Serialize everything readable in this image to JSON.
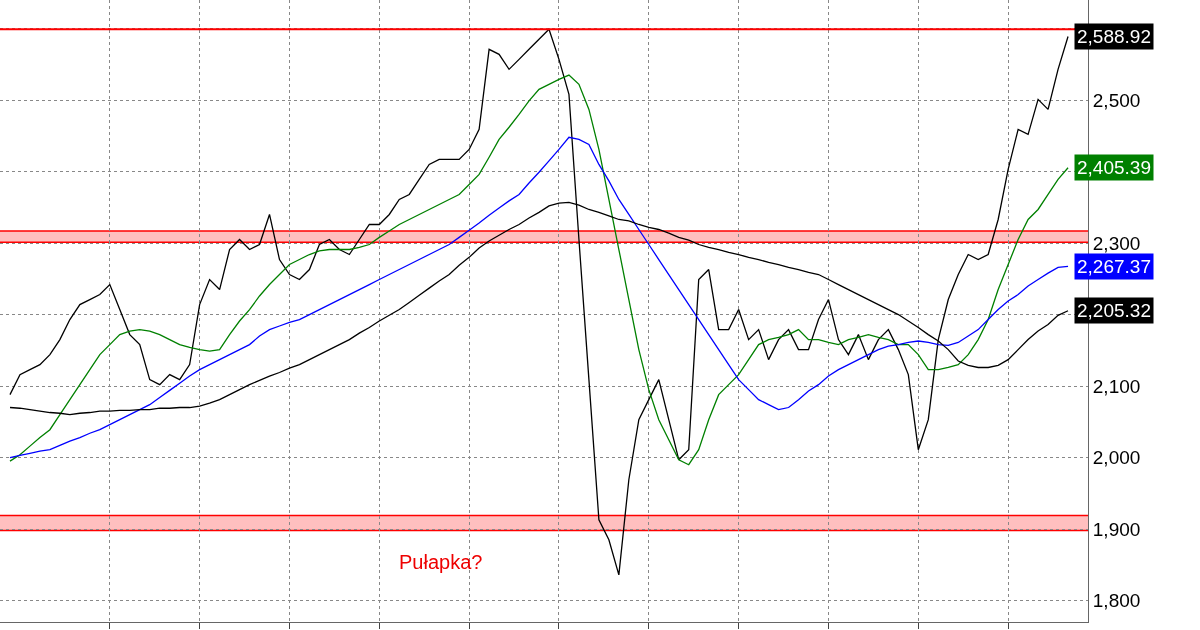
{
  "chart_data": {
    "type": "line",
    "categories": [
      null,
      null,
      null,
      null,
      null,
      null,
      null,
      null,
      null,
      null,
      null,
      null,
      null,
      null,
      null,
      null,
      null,
      null,
      null,
      null,
      null,
      null,
      null,
      null,
      null,
      null,
      null,
      null,
      null,
      null,
      null,
      null,
      null,
      null,
      null,
      null,
      null,
      null,
      null,
      null,
      null,
      null,
      null,
      null,
      null,
      null,
      null,
      null,
      null,
      null,
      null,
      null,
      null,
      null,
      null,
      null,
      null,
      null,
      null,
      null,
      null,
      null,
      null,
      null,
      null,
      null,
      null,
      null,
      null,
      null,
      null,
      null,
      null,
      null,
      null,
      null,
      null,
      null,
      null,
      null,
      null,
      null,
      null,
      null,
      null,
      null,
      null,
      null,
      null,
      null,
      null,
      null,
      null,
      null,
      null,
      null,
      null,
      null,
      null,
      null,
      null,
      null,
      null,
      null,
      null,
      null,
      null
    ],
    "series": [
      {
        "color": "#000000",
        "values": [
          2088,
          2116,
          2123,
          2130,
          2144,
          2165,
          2193,
          2214,
          2221,
          2228,
          2242,
          2207,
          2172,
          2158,
          2109,
          2102,
          2116,
          2109,
          2130,
          2214,
          2249,
          2235,
          2291,
          2305,
          2291,
          2298,
          2340,
          2277,
          2256,
          2249,
          2263,
          2298,
          2305,
          2291,
          2284,
          2305,
          2326,
          2326,
          2340,
          2361,
          2368,
          2389,
          2410,
          2417,
          2417,
          2417,
          2431,
          2459,
          2571,
          2564,
          2543,
          2557,
          2571,
          2585,
          2599,
          2557,
          2508,
          2305,
          2109,
          1913,
          1885,
          1836,
          1969,
          2053,
          2081,
          2109,
          2053,
          1997,
          2011,
          2249,
          2263,
          2179,
          2179,
          2207,
          2165,
          2179,
          2137,
          2165,
          2179,
          2151,
          2151,
          2193,
          2221,
          2165,
          2144,
          2172,
          2137,
          2165,
          2179,
          2151,
          2116,
          2011,
          2053,
          2165,
          2221,
          2256,
          2284,
          2277,
          2284,
          2333,
          2403,
          2459,
          2452,
          2501,
          2487,
          2543,
          2588.92
        ],
        "value_labels": [
          null,
          null,
          null,
          null,
          null,
          null,
          null,
          null,
          null,
          null,
          null,
          null,
          null,
          null,
          null,
          null,
          null,
          null,
          null,
          null,
          null,
          null,
          null,
          null,
          null,
          null,
          null,
          null,
          null,
          null,
          null,
          null,
          null,
          null,
          null,
          null,
          null,
          null,
          null,
          null,
          null,
          null,
          null,
          null,
          null,
          null,
          null,
          null,
          null,
          null,
          null,
          null,
          null,
          null,
          null,
          null,
          null,
          null,
          null,
          null,
          null,
          null,
          null,
          null,
          null,
          null,
          null,
          null,
          null,
          null,
          null,
          null,
          null,
          null,
          null,
          null,
          null,
          null,
          null,
          null,
          null,
          null,
          null,
          null,
          null,
          null,
          null,
          null,
          null,
          null,
          null,
          null,
          null,
          null,
          null,
          null,
          null,
          null,
          null,
          null,
          null,
          null,
          null,
          null,
          null,
          null,
          "2,588.92"
        ]
      },
      {
        "color": "#008000",
        "values": [
          1995,
          2004,
          2016,
          2028,
          2039,
          2060,
          2081,
          2102,
          2123,
          2144,
          2158,
          2172,
          2177,
          2179,
          2177,
          2172,
          2165,
          2158,
          2154,
          2151,
          2149,
          2151,
          2172,
          2191,
          2207,
          2226,
          2242,
          2256,
          2270,
          2277,
          2284,
          2289,
          2291,
          2291,
          2291,
          2294,
          2298,
          2308,
          2317,
          2326,
          2333,
          2340,
          2347,
          2354,
          2361,
          2368,
          2382,
          2396,
          2420,
          2445,
          2462,
          2480,
          2499,
          2515,
          2522,
          2529,
          2535,
          2522,
          2487,
          2431,
          2361,
          2291,
          2221,
          2151,
          2095,
          2053,
          2025,
          1997,
          1990,
          2011,
          2053,
          2088,
          2102,
          2116,
          2137,
          2158,
          2165,
          2168,
          2172,
          2179,
          2165,
          2165,
          2161,
          2158,
          2165,
          2168,
          2172,
          2168,
          2165,
          2158,
          2158,
          2144,
          2123,
          2123,
          2126,
          2130,
          2144,
          2165,
          2193,
          2235,
          2270,
          2305,
          2333,
          2347,
          2368,
          2389,
          2405.39
        ],
        "value_labels": [
          null,
          null,
          null,
          null,
          null,
          null,
          null,
          null,
          null,
          null,
          null,
          null,
          null,
          null,
          null,
          null,
          null,
          null,
          null,
          null,
          null,
          null,
          null,
          null,
          null,
          null,
          null,
          null,
          null,
          null,
          null,
          null,
          null,
          null,
          null,
          null,
          null,
          null,
          null,
          null,
          null,
          null,
          null,
          null,
          null,
          null,
          null,
          null,
          null,
          null,
          null,
          null,
          null,
          null,
          null,
          null,
          null,
          null,
          null,
          null,
          null,
          null,
          null,
          null,
          null,
          null,
          null,
          null,
          null,
          null,
          null,
          null,
          null,
          null,
          null,
          null,
          null,
          null,
          null,
          null,
          null,
          null,
          null,
          null,
          null,
          null,
          null,
          null,
          null,
          null,
          null,
          null,
          null,
          null,
          null,
          null,
          null,
          null,
          null,
          null,
          null,
          null,
          null,
          null,
          null,
          null,
          "2,405.39"
        ]
      },
      {
        "color": "#0000ff",
        "values": [
          2000,
          2003,
          2006,
          2009,
          2011,
          2017,
          2023,
          2028,
          2034,
          2039,
          2046,
          2053,
          2060,
          2067,
          2074,
          2084,
          2094,
          2104,
          2114,
          2123,
          2130,
          2137,
          2144,
          2151,
          2158,
          2170,
          2179,
          2184,
          2189,
          2193,
          2200,
          2207,
          2214,
          2221,
          2228,
          2235,
          2242,
          2249,
          2256,
          2263,
          2270,
          2277,
          2284,
          2291,
          2298,
          2308,
          2318,
          2328,
          2339,
          2349,
          2359,
          2368,
          2384,
          2399,
          2415,
          2431,
          2448,
          2445,
          2438,
          2410,
          2387,
          2361,
          2340,
          2319,
          2298,
          2277,
          2256,
          2235,
          2214,
          2193,
          2172,
          2151,
          2130,
          2109,
          2095,
          2081,
          2074,
          2067,
          2070,
          2081,
          2093,
          2102,
          2114,
          2123,
          2130,
          2137,
          2144,
          2151,
          2156,
          2158,
          2161,
          2163,
          2161,
          2158,
          2157,
          2161,
          2170,
          2179,
          2193,
          2207,
          2219,
          2228,
          2240,
          2249,
          2258,
          2266,
          2267.37
        ],
        "value_labels": [
          null,
          null,
          null,
          null,
          null,
          null,
          null,
          null,
          null,
          null,
          null,
          null,
          null,
          null,
          null,
          null,
          null,
          null,
          null,
          null,
          null,
          null,
          null,
          null,
          null,
          null,
          null,
          null,
          null,
          null,
          null,
          null,
          null,
          null,
          null,
          null,
          null,
          null,
          null,
          null,
          null,
          null,
          null,
          null,
          null,
          null,
          null,
          null,
          null,
          null,
          null,
          null,
          null,
          null,
          null,
          null,
          null,
          null,
          null,
          null,
          null,
          null,
          null,
          null,
          null,
          null,
          null,
          null,
          null,
          null,
          null,
          null,
          null,
          null,
          null,
          null,
          null,
          null,
          null,
          null,
          null,
          null,
          null,
          null,
          null,
          null,
          null,
          null,
          null,
          null,
          null,
          null,
          null,
          null,
          null,
          null,
          null,
          null,
          null,
          null,
          null,
          null,
          null,
          null,
          null,
          null,
          "2,267.37"
        ]
      },
      {
        "color": "#000000",
        "values": [
          2070,
          2069,
          2067,
          2065,
          2063,
          2062,
          2060,
          2062,
          2063,
          2065,
          2065,
          2066,
          2066,
          2067,
          2067,
          2069,
          2069,
          2070,
          2070,
          2072,
          2076,
          2081,
          2088,
          2095,
          2102,
          2108,
          2114,
          2119,
          2125,
          2130,
          2137,
          2144,
          2151,
          2158,
          2165,
          2174,
          2182,
          2191,
          2199,
          2207,
          2217,
          2227,
          2237,
          2247,
          2256,
          2269,
          2280,
          2293,
          2303,
          2311,
          2319,
          2326,
          2335,
          2343,
          2352,
          2356,
          2357,
          2353,
          2347,
          2343,
          2338,
          2333,
          2331,
          2326,
          2322,
          2319,
          2314,
          2308,
          2304,
          2298,
          2294,
          2291,
          2287,
          2284,
          2280,
          2277,
          2273,
          2270,
          2266,
          2263,
          2259,
          2256,
          2249,
          2242,
          2235,
          2228,
          2221,
          2214,
          2207,
          2200,
          2191,
          2182,
          2172,
          2163,
          2151,
          2135,
          2129,
          2126,
          2126,
          2129,
          2137,
          2151,
          2165,
          2177,
          2186,
          2199,
          2205.32
        ],
        "value_labels": [
          null,
          null,
          null,
          null,
          null,
          null,
          null,
          null,
          null,
          null,
          null,
          null,
          null,
          null,
          null,
          null,
          null,
          null,
          null,
          null,
          null,
          null,
          null,
          null,
          null,
          null,
          null,
          null,
          null,
          null,
          null,
          null,
          null,
          null,
          null,
          null,
          null,
          null,
          null,
          null,
          null,
          null,
          null,
          null,
          null,
          null,
          null,
          null,
          null,
          null,
          null,
          null,
          null,
          null,
          null,
          null,
          null,
          null,
          null,
          null,
          null,
          null,
          null,
          null,
          null,
          null,
          null,
          null,
          null,
          null,
          null,
          null,
          null,
          null,
          null,
          null,
          null,
          null,
          null,
          null,
          null,
          null,
          null,
          null,
          null,
          null,
          null,
          null,
          null,
          null,
          null,
          null,
          null,
          null,
          null,
          null,
          null,
          null,
          null,
          null,
          null,
          null,
          null,
          null,
          null,
          null,
          "2,205.32"
        ]
      }
    ],
    "ylim": [
      1770,
      2640
    ],
    "yticks": [
      {
        "value": 1800,
        "label": "1,800"
      },
      {
        "value": 1900,
        "label": "1,900"
      },
      {
        "value": 2000,
        "label": "2,000"
      },
      {
        "value": 2100,
        "label": "2,100"
      },
      {
        "value": 2200,
        "label": null
      },
      {
        "value": 2300,
        "label": "2,300"
      },
      {
        "value": 2400,
        "label": null
      },
      {
        "value": 2500,
        "label": "2,500"
      },
      {
        "value": 2600,
        "label": null
      }
    ],
    "bands": [
      {
        "axis": "y",
        "from": 1898,
        "to": 1919,
        "color": "#ff0000"
      },
      {
        "axis": "y",
        "from": 2301,
        "to": 2317,
        "color": "#ff0000"
      }
    ],
    "ref_lines": [
      {
        "axis": "y",
        "value": 2599,
        "color": "#ff0000"
      }
    ],
    "annotations": [
      "Pułapka?"
    ],
    "grid": true
  }
}
